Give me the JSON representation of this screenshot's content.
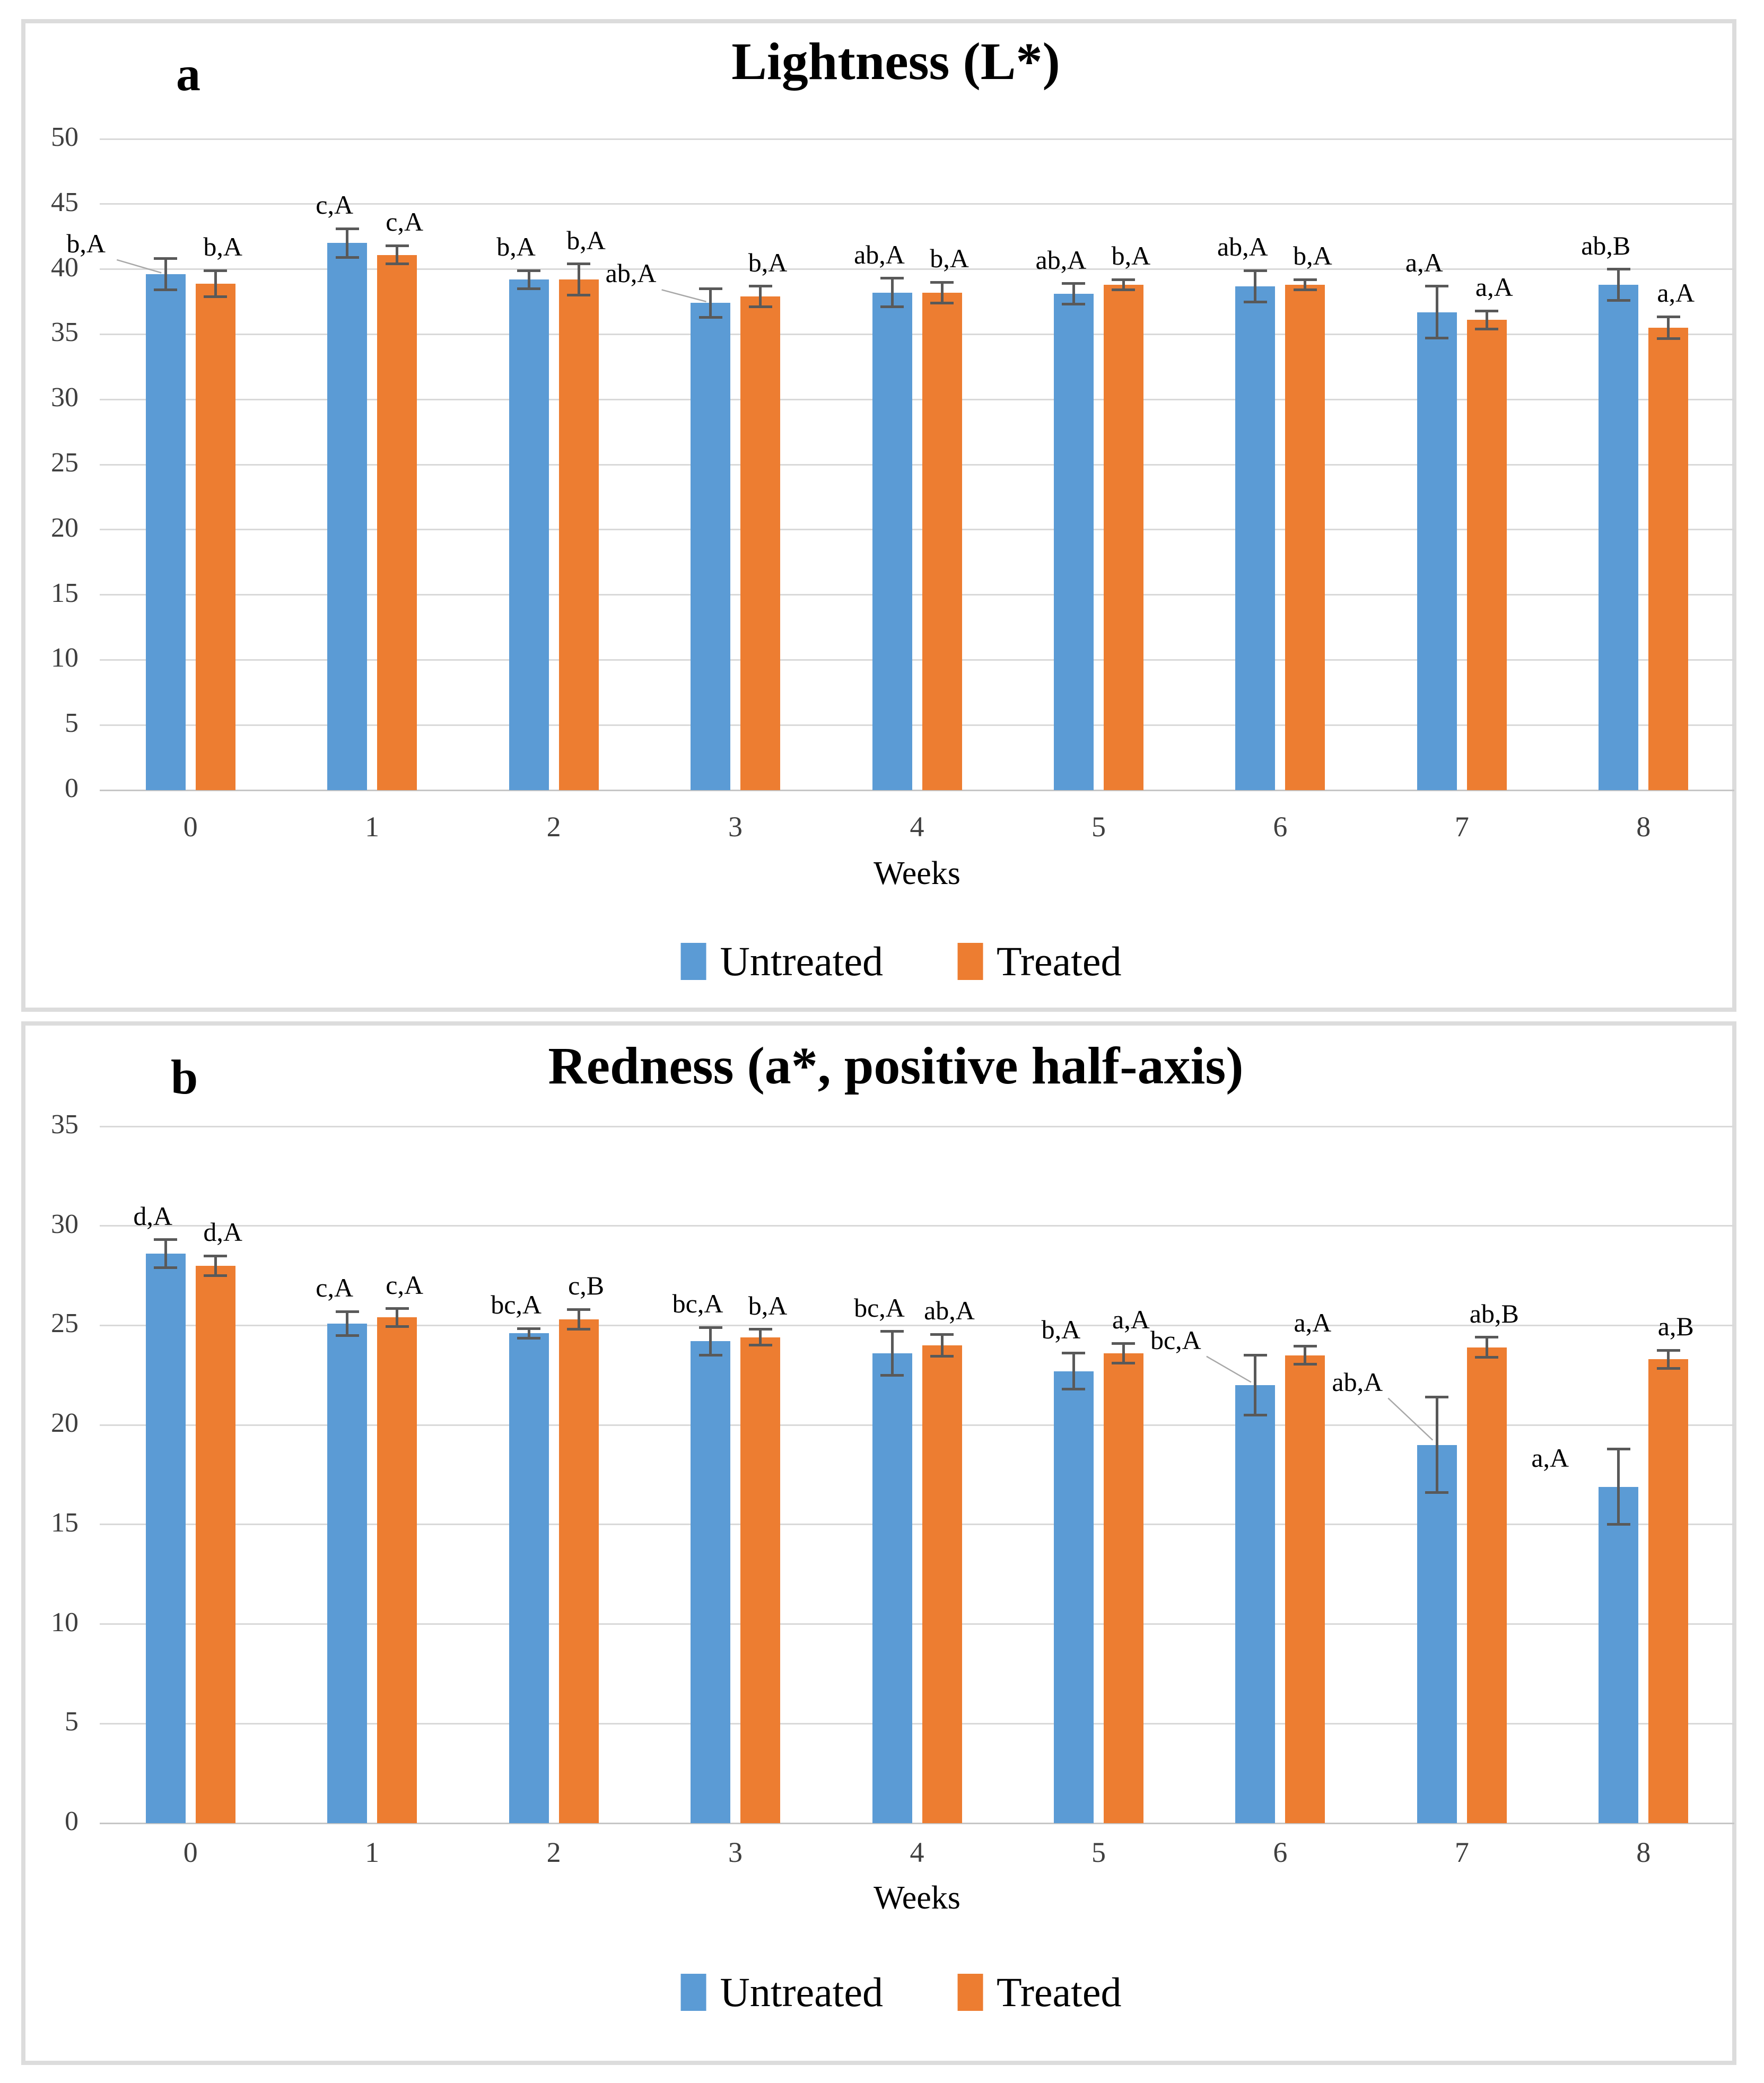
{
  "figure": {
    "legend": {
      "untreated_label": "Untreated",
      "treated_label": "Treated"
    },
    "colors": {
      "untreated": "#5B9BD5",
      "treated": "#ED7D31",
      "gridline": "#d9d9d9",
      "axis_line": "#c6c6c6",
      "error_bar": "#595959",
      "leader_line": "#a8a8a8",
      "frame": "#dcdcdc",
      "text": "#000000",
      "tick_text": "#3f3f3f"
    }
  },
  "chart_data": [
    {
      "type": "bar",
      "panel_letter": "a",
      "title": "Lightness (L*)",
      "xlabel": "Weeks",
      "categories": [
        "0",
        "1",
        "2",
        "3",
        "4",
        "5",
        "6",
        "7",
        "8"
      ],
      "ylim": [
        0,
        50
      ],
      "ytick_step": 5,
      "yticks": [
        "50",
        "45",
        "40",
        "35",
        "30",
        "25",
        "20",
        "15",
        "10",
        "5",
        "0"
      ],
      "grid": true,
      "legend_position": "bottom",
      "series": [
        {
          "name": "Untreated",
          "color": "#5B9BD5",
          "values": [
            39.6,
            42.0,
            39.2,
            37.4,
            38.2,
            38.1,
            38.7,
            36.7,
            38.8
          ],
          "errors": [
            1.2,
            1.1,
            0.7,
            1.1,
            1.1,
            0.8,
            1.2,
            2.0,
            1.2
          ],
          "labels": [
            {
              "text": "b,A",
              "leader": true
            },
            {
              "text": "c,A"
            },
            {
              "text": "b,A"
            },
            {
              "text": "ab,A",
              "leader": true
            },
            {
              "text": "ab,A"
            },
            {
              "text": "ab,A"
            },
            {
              "text": "ab,A"
            },
            {
              "text": "a,A"
            },
            {
              "text": "ab,B"
            }
          ]
        },
        {
          "name": "Treated",
          "color": "#ED7D31",
          "values": [
            38.9,
            41.1,
            39.2,
            37.9,
            38.2,
            38.8,
            38.8,
            36.1,
            35.5
          ],
          "errors": [
            1.0,
            0.7,
            1.2,
            0.8,
            0.8,
            0.4,
            0.4,
            0.7,
            0.85
          ],
          "labels": [
            {
              "text": "b,A"
            },
            {
              "text": "c,A"
            },
            {
              "text": "b,A"
            },
            {
              "text": "b,A"
            },
            {
              "text": "b,A"
            },
            {
              "text": "b,A"
            },
            {
              "text": "b,A"
            },
            {
              "text": "a,A"
            },
            {
              "text": "a,A"
            }
          ]
        }
      ]
    },
    {
      "type": "bar",
      "panel_letter": "b",
      "title": "Redness (a*, positive half-axis)",
      "xlabel": "Weeks",
      "categories": [
        "0",
        "1",
        "2",
        "3",
        "4",
        "5",
        "6",
        "7",
        "8"
      ],
      "ylim": [
        0,
        35
      ],
      "ytick_step": 5,
      "yticks": [
        "35",
        "30",
        "25",
        "20",
        "15",
        "10",
        "5",
        "0"
      ],
      "grid": true,
      "legend_position": "bottom",
      "series": [
        {
          "name": "Untreated",
          "color": "#5B9BD5",
          "values": [
            28.6,
            25.1,
            24.6,
            24.2,
            23.6,
            22.7,
            22.0,
            19.0,
            16.9
          ],
          "errors": [
            0.7,
            0.6,
            0.25,
            0.7,
            1.1,
            0.9,
            1.5,
            2.4,
            1.9
          ],
          "labels": [
            {
              "text": "d,A"
            },
            {
              "text": "c,A"
            },
            {
              "text": "bc,A"
            },
            {
              "text": "bc,A"
            },
            {
              "text": "bc,A"
            },
            {
              "text": "b,A"
            },
            {
              "text": "bc,A",
              "leader": true
            },
            {
              "text": "ab,A",
              "leader": true
            },
            {
              "text": "a,A",
              "dx": -105,
              "dy": 62
            }
          ]
        },
        {
          "name": "Treated",
          "color": "#ED7D31",
          "values": [
            28.0,
            25.4,
            25.3,
            24.4,
            24.0,
            23.6,
            23.5,
            23.9,
            23.3
          ],
          "errors": [
            0.5,
            0.45,
            0.5,
            0.4,
            0.55,
            0.5,
            0.45,
            0.5,
            0.45
          ],
          "labels": [
            {
              "text": "d,A"
            },
            {
              "text": "c,A"
            },
            {
              "text": "c,B"
            },
            {
              "text": "b,A"
            },
            {
              "text": "ab,A"
            },
            {
              "text": "a,A"
            },
            {
              "text": "a,A"
            },
            {
              "text": "ab,B"
            },
            {
              "text": "a,B"
            }
          ]
        }
      ]
    }
  ]
}
